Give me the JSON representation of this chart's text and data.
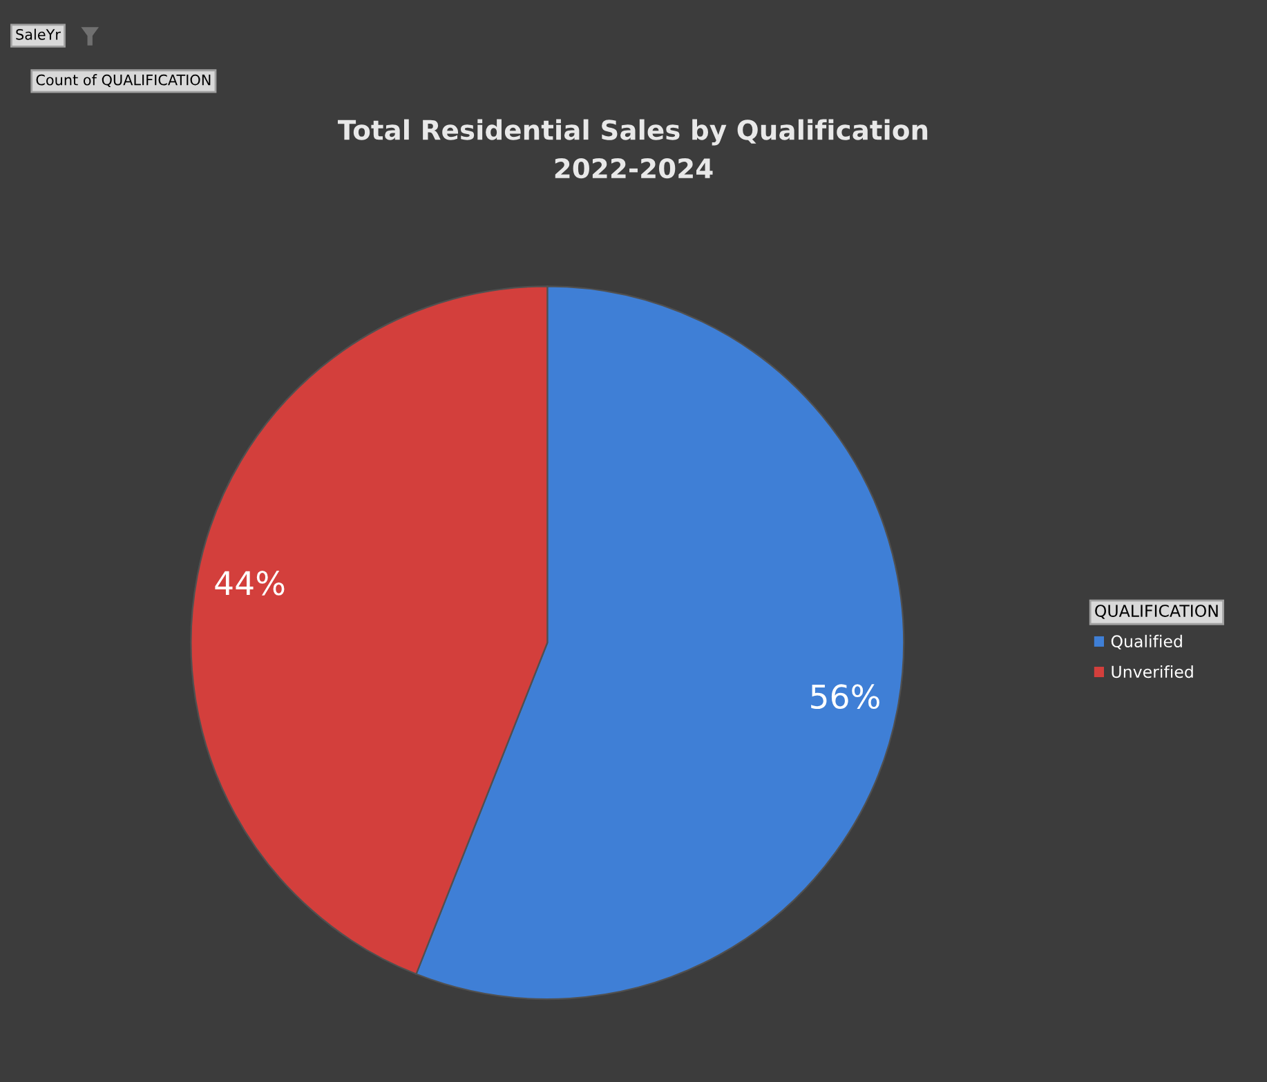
{
  "chart_data": {
    "type": "pie",
    "title": "Total Residential Sales by Qualification\n2022-2024",
    "categories": [
      "Qualified",
      "Unverified"
    ],
    "values": [
      56,
      44
    ],
    "colors": [
      "#3f7fd6",
      "#d33f3c"
    ],
    "value_labels": [
      "56%",
      "44%"
    ],
    "legend_title": "QUALIFICATION",
    "legend": "right",
    "annotations": [
      "SaleYr",
      "Count of QUALIFICATION"
    ]
  }
}
